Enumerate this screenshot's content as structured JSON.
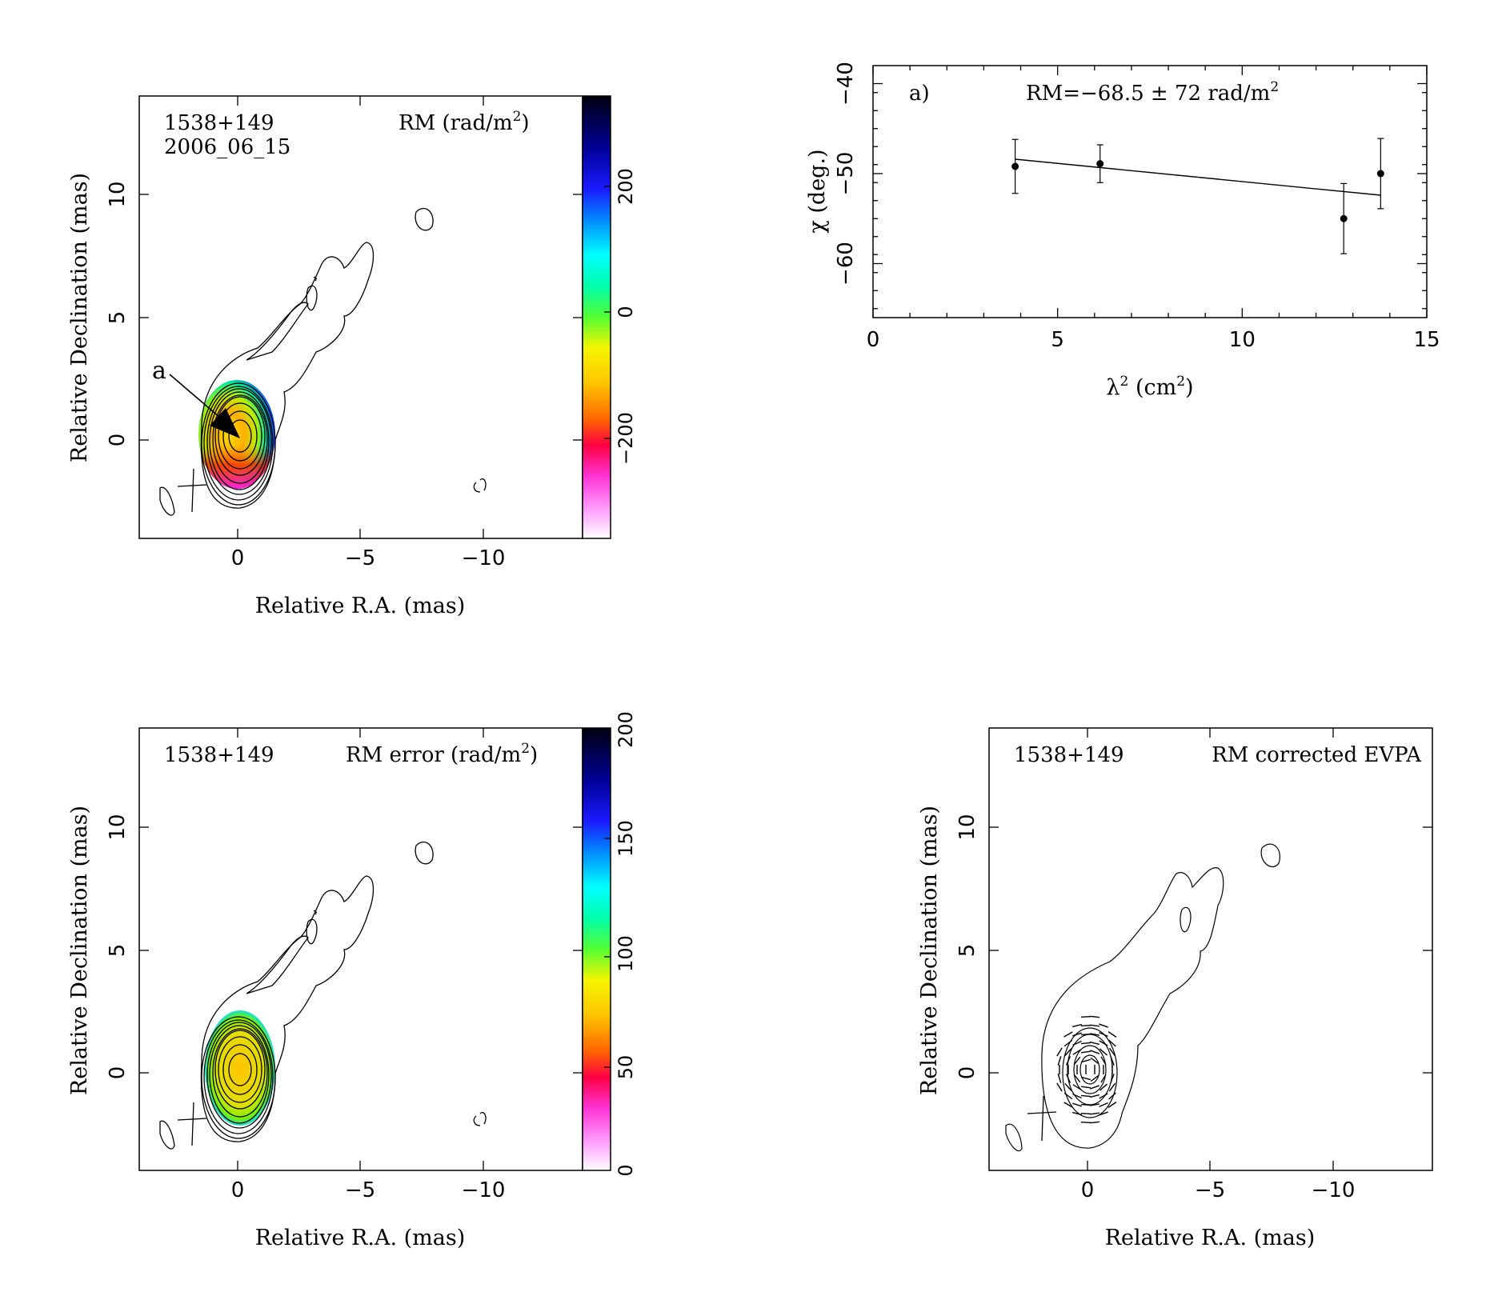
{
  "panels": {
    "rm_map": {
      "source": "1538+149",
      "epoch": "2006_06_15",
      "map_label": "RM (rad/m",
      "map_label_sup": "2",
      "map_label_end": ")",
      "xlabel": "Relative R.A. (mas)",
      "ylabel": "Relative Declination (mas)",
      "xticks": [
        "0",
        "−5",
        "−10"
      ],
      "yticks": [
        "0",
        "5",
        "10"
      ],
      "colorbar_ticks": [
        "−200",
        "0",
        "200"
      ],
      "marker_label": "a"
    },
    "rm_error": {
      "source": "1538+149",
      "map_label": "RM error (rad/m",
      "map_label_sup": "2",
      "map_label_end": ")",
      "xlabel": "Relative R.A. (mas)",
      "ylabel": "Relative Declination (mas)",
      "xticks": [
        "0",
        "−5",
        "−10"
      ],
      "yticks": [
        "0",
        "5",
        "10"
      ],
      "colorbar_ticks": [
        "0",
        "50",
        "100",
        "150",
        "200"
      ]
    },
    "evpa": {
      "source": "1538+149",
      "map_label": "RM corrected EVPA",
      "xlabel": "Relative R.A. (mas)",
      "ylabel": "Relative Declination (mas)",
      "xticks": [
        "0",
        "−5",
        "−10"
      ],
      "yticks": [
        "0",
        "5",
        "10"
      ]
    }
  },
  "chart_data": [
    {
      "type": "scatter",
      "panel_tag": "a)",
      "annotation": "RM=−68.5 ± 72 rad/m",
      "annotation_sup": "2",
      "xlabel_main": "λ",
      "xlabel_sup": "2",
      "xlabel_rest": " (cm",
      "xlabel_sup2": "2",
      "xlabel_end": ")",
      "ylabel": "χ (deg.)",
      "xlim": [
        0,
        15
      ],
      "ylim": [
        -66,
        -38
      ],
      "xticks": [
        0,
        5,
        10,
        15
      ],
      "yticks": [
        -40,
        -50,
        -60
      ],
      "points": [
        {
          "x": 3.85,
          "y": -49.2,
          "err": 3.0
        },
        {
          "x": 6.15,
          "y": -48.9,
          "err": 2.1
        },
        {
          "x": 12.75,
          "y": -55.0,
          "err": 3.9
        },
        {
          "x": 13.75,
          "y": -50.0,
          "err": 3.9
        }
      ],
      "fit": {
        "x": [
          3.85,
          13.75
        ],
        "y": [
          -48.4,
          -52.4
        ]
      }
    },
    {
      "type": "heatmap",
      "title": "RM (rad/m2)",
      "colorbar_range": [
        -380,
        380
      ],
      "xlim": [
        4,
        -14
      ],
      "ylim": [
        -4,
        14
      ]
    },
    {
      "type": "heatmap",
      "title": "RM error (rad/m2)",
      "colorbar_range": [
        0,
        200
      ],
      "xlim": [
        4,
        -14
      ],
      "ylim": [
        -4,
        14
      ]
    }
  ]
}
